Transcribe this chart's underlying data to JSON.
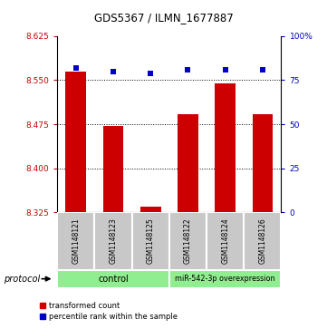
{
  "title": "GDS5367 / ILMN_1677887",
  "samples": [
    "GSM1148121",
    "GSM1148123",
    "GSM1148125",
    "GSM1148122",
    "GSM1148124",
    "GSM1148126"
  ],
  "red_values": [
    8.565,
    8.472,
    8.335,
    8.492,
    8.545,
    8.492
  ],
  "blue_values": [
    82,
    80,
    79,
    81,
    81,
    81
  ],
  "ylim_left": [
    8.325,
    8.625
  ],
  "ylim_right": [
    0,
    100
  ],
  "yticks_left": [
    8.325,
    8.4,
    8.475,
    8.55,
    8.625
  ],
  "yticks_right": [
    0,
    25,
    50,
    75,
    100
  ],
  "ytick_labels_right": [
    "0",
    "25",
    "50",
    "75",
    "100%"
  ],
  "legend_red": "transformed count",
  "legend_blue": "percentile rank within the sample",
  "bar_color": "#CC0000",
  "dot_color": "#0000CC",
  "bar_width": 0.55,
  "bar_bottom": 8.325,
  "tick_color_left": "#CC0000",
  "tick_color_right": "#0000CC",
  "label_bg": "#C8C8C8",
  "group_bg": "#90EE90",
  "grid_lines": [
    8.4,
    8.475,
    8.55
  ]
}
